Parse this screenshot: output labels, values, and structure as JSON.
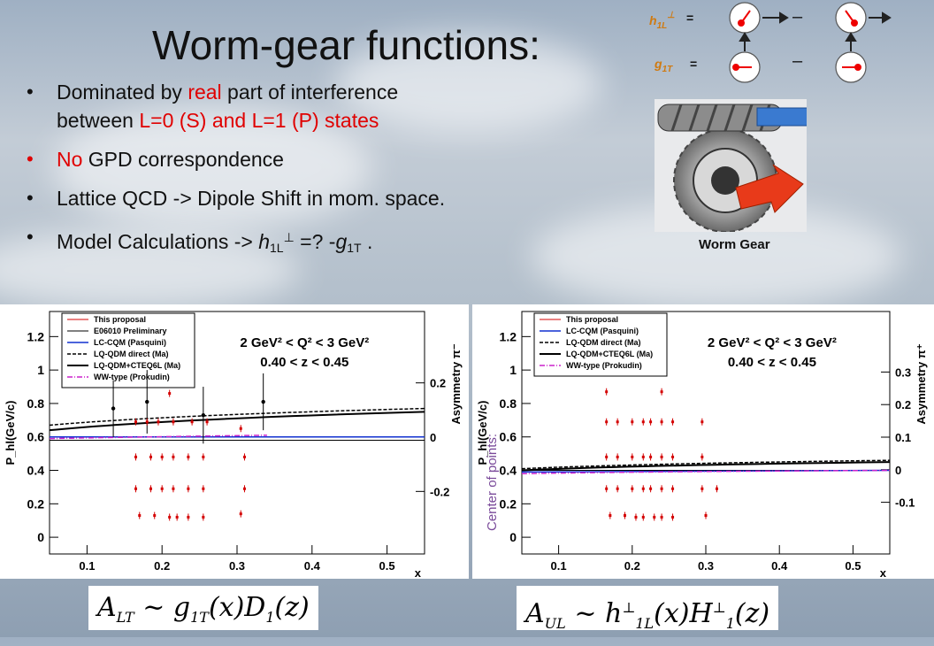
{
  "slide": {
    "title": "Worm-gear functions:",
    "bullets": [
      {
        "pre": "Dominated by ",
        "red": "real",
        "post": " part of interference"
      },
      {
        "line2": "between ",
        "red2": "L=0 (S) and L=1 (P) states"
      },
      {
        "red": "No",
        "post": " GPD correspondence"
      },
      {
        "text": "Lattice  QCD -> Dipole Shift in mom. space."
      },
      {
        "pre": "Model Calculations -> ",
        "h": "h",
        "h_sub": "1L",
        "h_sup": "⊥",
        "mid": " =? -",
        "g": "g",
        "g_sub": "1T",
        "post": " ."
      }
    ],
    "bullet_marker": "•",
    "worm_gear_caption": "Worm Gear",
    "defs": {
      "h_label": "h",
      "h_sub": "1L",
      "h_sup": "⊥",
      "g_label": "g",
      "g_sub": "1T",
      "eq": "=",
      "minus": "–"
    },
    "side_label": "Center of points:",
    "formulas": {
      "left": "A_LT ~ g_1T(x) D_1(z)",
      "right": "A_UL ~ h^⊥_1L(x) H^⊥_1(z)"
    }
  },
  "chart_data": [
    {
      "type": "scatter",
      "panel": "left",
      "ylabel": "P_hl(GeV/c)",
      "y2label": "Asymmetry π⁻",
      "xlabel": "x",
      "x_ticks": [
        "0.1",
        "0.2",
        "0.3",
        "0.4",
        "0.5"
      ],
      "y_ticks": [
        "0",
        "0.2",
        "0.4",
        "0.6",
        "0.8",
        "1",
        "1.2"
      ],
      "y2_ticks": [
        "-0.2",
        "0",
        "0.2"
      ],
      "annotation_lines": [
        "2 GeV² < Q² < 3 GeV²",
        "0.40 < z < 0.45"
      ],
      "legend": [
        "This proposal",
        "E06010 Preliminary",
        "LC-CQM (Pasquini)",
        "LQ-QDM direct (Ma)",
        "LQ-QDM+CTEQ6L (Ma)",
        "WW-type (Prokudin)"
      ],
      "xlim": [
        0.05,
        0.55
      ],
      "ylim": [
        -0.1,
        1.35
      ],
      "points_proposal": [
        [
          0.165,
          0.48
        ],
        [
          0.185,
          0.48
        ],
        [
          0.2,
          0.48
        ],
        [
          0.215,
          0.48
        ],
        [
          0.235,
          0.48
        ],
        [
          0.255,
          0.48
        ],
        [
          0.31,
          0.48
        ],
        [
          0.165,
          0.29
        ],
        [
          0.185,
          0.29
        ],
        [
          0.2,
          0.29
        ],
        [
          0.215,
          0.29
        ],
        [
          0.235,
          0.29
        ],
        [
          0.255,
          0.29
        ],
        [
          0.31,
          0.29
        ],
        [
          0.17,
          0.13
        ],
        [
          0.19,
          0.13
        ],
        [
          0.21,
          0.12
        ],
        [
          0.22,
          0.12
        ],
        [
          0.235,
          0.12
        ],
        [
          0.255,
          0.12
        ],
        [
          0.305,
          0.14
        ],
        [
          0.165,
          0.69
        ],
        [
          0.18,
          0.69
        ],
        [
          0.195,
          0.69
        ],
        [
          0.215,
          0.69
        ],
        [
          0.24,
          0.69
        ],
        [
          0.21,
          0.86
        ],
        [
          0.305,
          0.65
        ],
        [
          0.26,
          0.69
        ]
      ],
      "points_e06010": [
        [
          0.135,
          0.77,
          0.17
        ],
        [
          0.18,
          0.81,
          0.19
        ],
        [
          0.255,
          0.73,
          0.17
        ],
        [
          0.335,
          0.81,
          0.17
        ]
      ]
    },
    {
      "type": "scatter",
      "panel": "right",
      "ylabel": "P_hl(GeV/c)",
      "y2label": "Asymmetry π⁺",
      "xlabel": "x",
      "x_ticks": [
        "0.1",
        "0.2",
        "0.3",
        "0.4",
        "0.5"
      ],
      "y_ticks": [
        "0",
        "0.2",
        "0.4",
        "0.6",
        "0.8",
        "1",
        "1.2"
      ],
      "y2_ticks": [
        "-0.1",
        "0",
        "0.1",
        "0.2",
        "0.3"
      ],
      "annotation_lines": [
        "2 GeV² < Q² < 3 GeV²",
        "0.40 < z < 0.45"
      ],
      "legend": [
        "This proposal",
        "LC-CQM (Pasquini)",
        "LQ-QDM direct (Ma)",
        "LQ-QDM+CTEQ6L (Ma)",
        "WW-type (Prokudin)"
      ],
      "xlim": [
        0.05,
        0.55
      ],
      "ylim": [
        -0.1,
        1.35
      ],
      "points_proposal": [
        [
          0.165,
          0.87
        ],
        [
          0.24,
          0.87
        ],
        [
          0.165,
          0.69
        ],
        [
          0.18,
          0.69
        ],
        [
          0.2,
          0.69
        ],
        [
          0.215,
          0.69
        ],
        [
          0.225,
          0.69
        ],
        [
          0.24,
          0.69
        ],
        [
          0.255,
          0.69
        ],
        [
          0.295,
          0.69
        ],
        [
          0.165,
          0.48
        ],
        [
          0.18,
          0.48
        ],
        [
          0.2,
          0.48
        ],
        [
          0.215,
          0.48
        ],
        [
          0.225,
          0.48
        ],
        [
          0.24,
          0.48
        ],
        [
          0.255,
          0.48
        ],
        [
          0.295,
          0.48
        ],
        [
          0.165,
          0.29
        ],
        [
          0.18,
          0.29
        ],
        [
          0.2,
          0.29
        ],
        [
          0.215,
          0.29
        ],
        [
          0.225,
          0.29
        ],
        [
          0.24,
          0.29
        ],
        [
          0.255,
          0.29
        ],
        [
          0.295,
          0.29
        ],
        [
          0.315,
          0.29
        ],
        [
          0.17,
          0.13
        ],
        [
          0.19,
          0.13
        ],
        [
          0.205,
          0.12
        ],
        [
          0.215,
          0.12
        ],
        [
          0.23,
          0.12
        ],
        [
          0.24,
          0.12
        ],
        [
          0.255,
          0.12
        ],
        [
          0.3,
          0.13
        ]
      ]
    }
  ],
  "colors": {
    "title": "#111111",
    "red": "#e00000",
    "orange_label": "#d07a10",
    "proposal_points": "#d40000",
    "lc_cqm": "#1030d0",
    "ww_type": "#cc22cc"
  }
}
